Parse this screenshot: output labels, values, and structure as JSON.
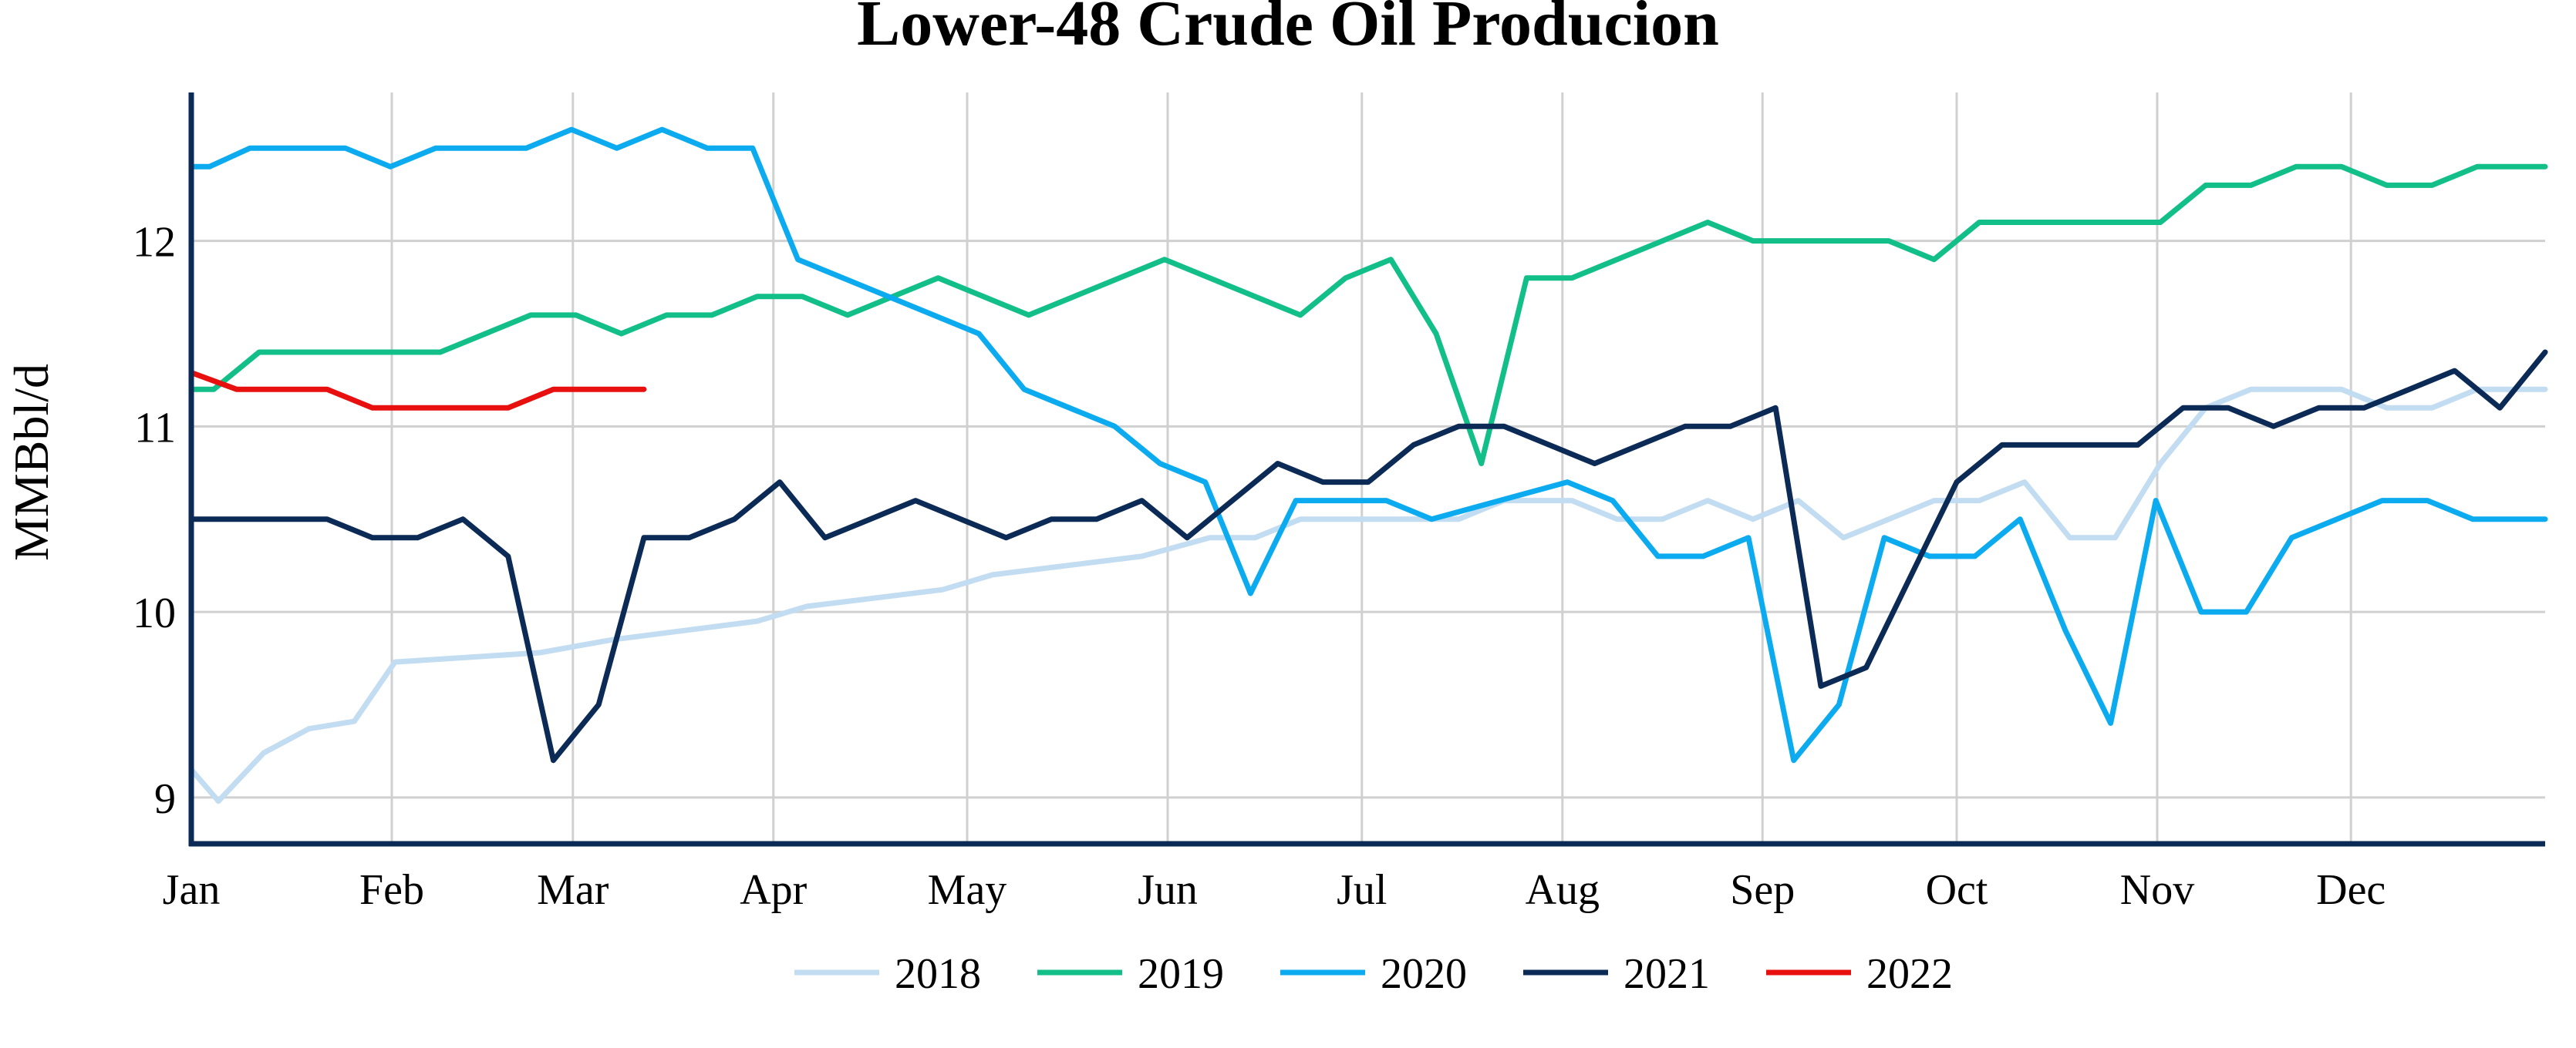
{
  "chart_data": {
    "type": "line",
    "title": "Lower-48 Crude Oil Producion",
    "ylabel": "MMBbl/d",
    "xlabel": "",
    "ylim": [
      8.75,
      12.8
    ],
    "xlim": [
      0,
      52
    ],
    "grid": true,
    "legend_position": "bottom",
    "x_ticks": [
      {
        "label": "Jan",
        "value": 0
      },
      {
        "label": "Feb",
        "value": 4.43
      },
      {
        "label": "Mar",
        "value": 8.43
      },
      {
        "label": "Apr",
        "value": 12.86
      },
      {
        "label": "May",
        "value": 17.14
      },
      {
        "label": "Jun",
        "value": 21.57
      },
      {
        "label": "Jul",
        "value": 25.86
      },
      {
        "label": "Aug",
        "value": 30.29
      },
      {
        "label": "Sep",
        "value": 34.71
      },
      {
        "label": "Oct",
        "value": 39.0
      },
      {
        "label": "Nov",
        "value": 43.43
      },
      {
        "label": "Dec",
        "value": 47.71
      }
    ],
    "y_ticks": [
      9,
      10,
      11,
      12
    ],
    "series": [
      {
        "name": "2018",
        "color": "#c2dcf2",
        "x": [
          0,
          0.6,
          1.6,
          2.6,
          3.6,
          4.5,
          7.7,
          9.3,
          12.5,
          13.6,
          16.6,
          17.7,
          21,
          22.5,
          23.5,
          24.5,
          26,
          28,
          29,
          30.5,
          31.5,
          32.5,
          33.5,
          34.5,
          35.5,
          36.5,
          37.5,
          38.5,
          39.5,
          40.5,
          41.5,
          42.5,
          43.5,
          44.5,
          45.5,
          46.5,
          47.5,
          48.5,
          49.5,
          50.5,
          52
        ],
        "y": [
          9.15,
          8.98,
          9.24,
          9.37,
          9.41,
          9.73,
          9.78,
          9.85,
          9.95,
          10.03,
          10.12,
          10.2,
          10.3,
          10.4,
          10.4,
          10.5,
          10.5,
          10.5,
          10.6,
          10.6,
          10.5,
          10.5,
          10.6,
          10.5,
          10.6,
          10.4,
          10.5,
          10.6,
          10.6,
          10.7,
          10.4,
          10.4,
          10.8,
          11.1,
          11.2,
          11.2,
          11.2,
          11.1,
          11.1,
          11.2,
          11.2
        ]
      },
      {
        "name": "2019",
        "color": "#12bf88",
        "x": [
          0,
          0.5,
          1.5,
          2.5,
          3.5,
          4.5,
          5.5,
          7.5,
          8.5,
          9.5,
          10.5,
          11.5,
          12.5,
          13.5,
          14.5,
          16.5,
          18.5,
          21.5,
          24.5,
          25.5,
          26.5,
          27.5,
          28.5,
          29.5,
          30.5,
          33.5,
          34.5,
          35.5,
          36.5,
          37.5,
          38.5,
          39.5,
          40.5,
          42.5,
          43.5,
          44.5,
          45.5,
          46.5,
          47.5,
          48.5,
          49.5,
          50.5,
          52
        ],
        "y": [
          11.2,
          11.2,
          11.4,
          11.4,
          11.4,
          11.4,
          11.4,
          11.6,
          11.6,
          11.5,
          11.6,
          11.6,
          11.7,
          11.7,
          11.6,
          11.8,
          11.6,
          11.9,
          11.6,
          11.8,
          11.9,
          11.5,
          10.8,
          11.8,
          11.8,
          12.1,
          12.0,
          12.0,
          12.0,
          12.0,
          11.9,
          12.1,
          12.1,
          12.1,
          12.1,
          12.3,
          12.3,
          12.4,
          12.4,
          12.3,
          12.3,
          12.4,
          12.4
        ]
      },
      {
        "name": "2020",
        "color": "#0cabf0",
        "x": [
          0,
          0.4,
          1.3,
          2.4,
          3.4,
          4.4,
          5.4,
          7.4,
          8.4,
          9.4,
          10.4,
          11.4,
          12.4,
          13.4,
          17.4,
          18.4,
          20.4,
          21.4,
          22.4,
          23.4,
          24.4,
          25.4,
          26.4,
          27.4,
          30.4,
          31.4,
          32.4,
          33.4,
          34.4,
          35.4,
          36.4,
          37.4,
          38.4,
          39.4,
          40.4,
          41.4,
          42.4,
          43.4,
          44.4,
          45.4,
          46.4,
          47.4,
          48.4,
          49.4,
          50.4,
          52
        ],
        "y": [
          12.4,
          12.4,
          12.5,
          12.5,
          12.5,
          12.4,
          12.5,
          12.5,
          12.6,
          12.5,
          12.6,
          12.5,
          12.5,
          11.9,
          11.5,
          11.2,
          11.0,
          10.8,
          10.7,
          10.1,
          10.6,
          10.6,
          10.6,
          10.5,
          10.7,
          10.6,
          10.3,
          10.3,
          10.4,
          9.2,
          9.5,
          10.4,
          10.3,
          10.3,
          10.5,
          9.9,
          9.4,
          10.6,
          10.0,
          10.0,
          10.4,
          10.5,
          10.6,
          10.6,
          10.5,
          10.5
        ]
      },
      {
        "name": "2021",
        "color": "#0b2a55",
        "x": [
          0,
          1,
          2,
          3,
          4,
          5,
          6,
          7,
          8,
          9,
          10,
          11,
          12,
          13,
          14,
          15,
          16,
          17,
          18,
          19,
          20,
          21,
          22,
          23,
          24,
          25,
          26,
          27,
          28,
          29,
          30,
          31,
          32,
          33,
          34,
          35,
          36,
          37,
          38,
          39,
          40,
          41,
          42,
          43,
          44,
          45,
          46,
          47,
          48,
          49,
          50,
          51,
          52
        ],
        "y": [
          10.5,
          10.5,
          10.5,
          10.5,
          10.4,
          10.4,
          10.5,
          10.3,
          9.2,
          9.5,
          10.4,
          10.4,
          10.5,
          10.7,
          10.4,
          10.5,
          10.6,
          10.5,
          10.4,
          10.5,
          10.5,
          10.6,
          10.4,
          10.6,
          10.8,
          10.7,
          10.7,
          10.9,
          11.0,
          11.0,
          10.9,
          10.8,
          10.9,
          11.0,
          11.0,
          11.1,
          9.6,
          9.7,
          10.2,
          10.7,
          10.9,
          10.9,
          10.9,
          10.9,
          11.1,
          11.1,
          11.0,
          11.1,
          11.1,
          11.2,
          11.3,
          11.1,
          11.4
        ]
      },
      {
        "name": "2022",
        "color": "#e8100f",
        "x": [
          0,
          1,
          2,
          3,
          4,
          5,
          6,
          7,
          8,
          9,
          10
        ],
        "y": [
          11.29,
          11.2,
          11.2,
          11.2,
          11.1,
          11.1,
          11.1,
          11.1,
          11.2,
          11.2,
          11.2
        ]
      }
    ]
  }
}
